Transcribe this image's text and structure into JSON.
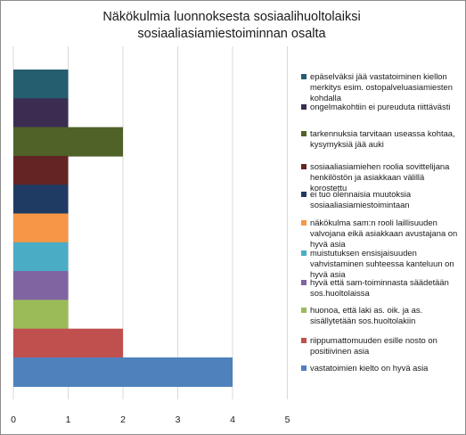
{
  "chart_data": {
    "type": "bar",
    "orientation": "horizontal",
    "title": "Näkökulmia luonnoksesta sosiaalihuoltolaiksi sosiaaliasiamiestoiminnan osalta",
    "xlabel": "",
    "ylabel": "",
    "xlim": [
      0,
      5
    ],
    "ticks": [
      "0",
      "1",
      "2",
      "3",
      "4",
      "5"
    ],
    "grid": true,
    "legend_position": "right",
    "series": [
      {
        "name": "epäselväksi jää vastatoiminen kiellon merkitys esim. ostopalveluasiamiesten kohdalla",
        "value": 1,
        "color": "#255e6e"
      },
      {
        "name": "ongelmakohtiin ei pureuduta riittävästi",
        "value": 1,
        "color": "#3b2d52"
      },
      {
        "name": "tarkennuksia tarvitaan useassa kohtaa, kysymyksiä jää auki",
        "value": 2,
        "color": "#4f6228"
      },
      {
        "name": "sosiaaliasiamiehen roolia sovittelijana henkilöstön ja asiakkaan välillä korostettu",
        "value": 1,
        "color": "#632523"
      },
      {
        "name": "ei tuo olennaisia muutoksia sosiaaliasiamiestoimintaan",
        "value": 1,
        "color": "#1f3b63"
      },
      {
        "name": "näkökulma sam:n rooli laillisuuden valvojana eikä asiakkaan avustajana on hyvä asia",
        "value": 1,
        "color": "#f79646"
      },
      {
        "name": "muistutuksen ensisjaisuuden vahvistaminen suhteessa kanteluun on hyvä asia",
        "value": 1,
        "color": "#4bacc6"
      },
      {
        "name": "hyvä että sam-toiminnasta säädetään sos.huoltolaissa",
        "value": 1,
        "color": "#8064a2"
      },
      {
        "name": "huonoa, että laki as. oik. ja as. sisällytetään sos.huoltolakiin",
        "value": 1,
        "color": "#9bbb59"
      },
      {
        "name": "riippumattomuuden esille nosto on positiivinen asia",
        "value": 2,
        "color": "#c0504d"
      },
      {
        "name": "vastatoimien kielto on hyvä asia",
        "value": 4,
        "color": "#4f81bd"
      }
    ]
  }
}
